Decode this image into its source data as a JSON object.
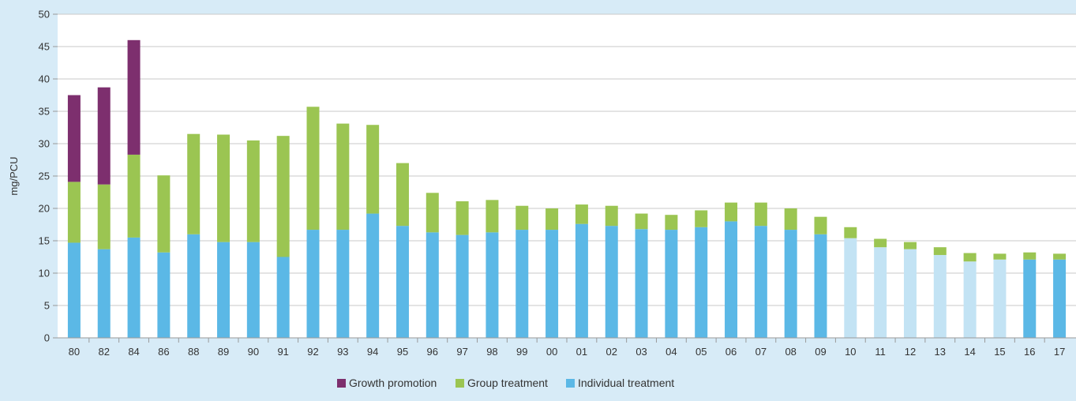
{
  "chart_data": {
    "type": "bar",
    "stacked": true,
    "ylabel": "mg/PCU",
    "ylim": [
      0,
      50
    ],
    "yticks": [
      0,
      5,
      10,
      15,
      20,
      25,
      30,
      35,
      40,
      45,
      50
    ],
    "grid": true,
    "legend_position": "bottom-center",
    "categories": [
      "80",
      "82",
      "84",
      "86",
      "88",
      "89",
      "90",
      "91",
      "92",
      "93",
      "94",
      "95",
      "96",
      "97",
      "98",
      "99",
      "00",
      "01",
      "02",
      "03",
      "04",
      "05",
      "06",
      "07",
      "08",
      "09",
      "10",
      "11",
      "12",
      "13",
      "14",
      "15",
      "16",
      "17"
    ],
    "series": [
      {
        "name": "Individual treatment",
        "color": "#5bb8e6",
        "values": [
          14.7,
          13.7,
          15.5,
          13.2,
          16.0,
          14.8,
          14.8,
          12.5,
          16.7,
          16.7,
          19.2,
          17.3,
          16.3,
          15.9,
          16.3,
          16.7,
          16.7,
          17.6,
          17.3,
          16.8,
          16.7,
          17.1,
          18.0,
          17.3,
          16.7,
          16.0,
          15.4,
          14.0,
          13.7,
          12.8,
          11.8,
          12.1,
          12.1,
          12.1
        ]
      },
      {
        "name": "Group treatment",
        "color": "#9bc552",
        "values": [
          9.4,
          10.0,
          12.8,
          11.9,
          15.5,
          16.6,
          15.7,
          18.7,
          19.0,
          16.4,
          13.7,
          9.7,
          6.1,
          5.2,
          5.0,
          3.7,
          3.3,
          3.0,
          3.1,
          2.4,
          2.3,
          2.6,
          2.9,
          3.6,
          3.3,
          2.7,
          1.7,
          1.3,
          1.1,
          1.2,
          1.3,
          0.9,
          1.1,
          0.9
        ]
      },
      {
        "name": "Growth promotion",
        "color": "#7d2f6e",
        "values": [
          13.4,
          15.0,
          17.7,
          0,
          0,
          0,
          0,
          0,
          0,
          0,
          0,
          0,
          0,
          0,
          0,
          0,
          0,
          0,
          0,
          0,
          0,
          0,
          0,
          0,
          0,
          0,
          0,
          0,
          0,
          0,
          0,
          0,
          0,
          0
        ]
      }
    ],
    "highlight": {
      "categories": [
        "10",
        "11",
        "12",
        "13",
        "14",
        "15"
      ],
      "individual_color": "#c3e3f4"
    }
  },
  "legend": {
    "items": [
      {
        "label": "Growth promotion",
        "color": "#7d2f6e"
      },
      {
        "label": "Group treatment",
        "color": "#9bc552"
      },
      {
        "label": "Individual treatment",
        "color": "#5bb8e6"
      }
    ]
  }
}
